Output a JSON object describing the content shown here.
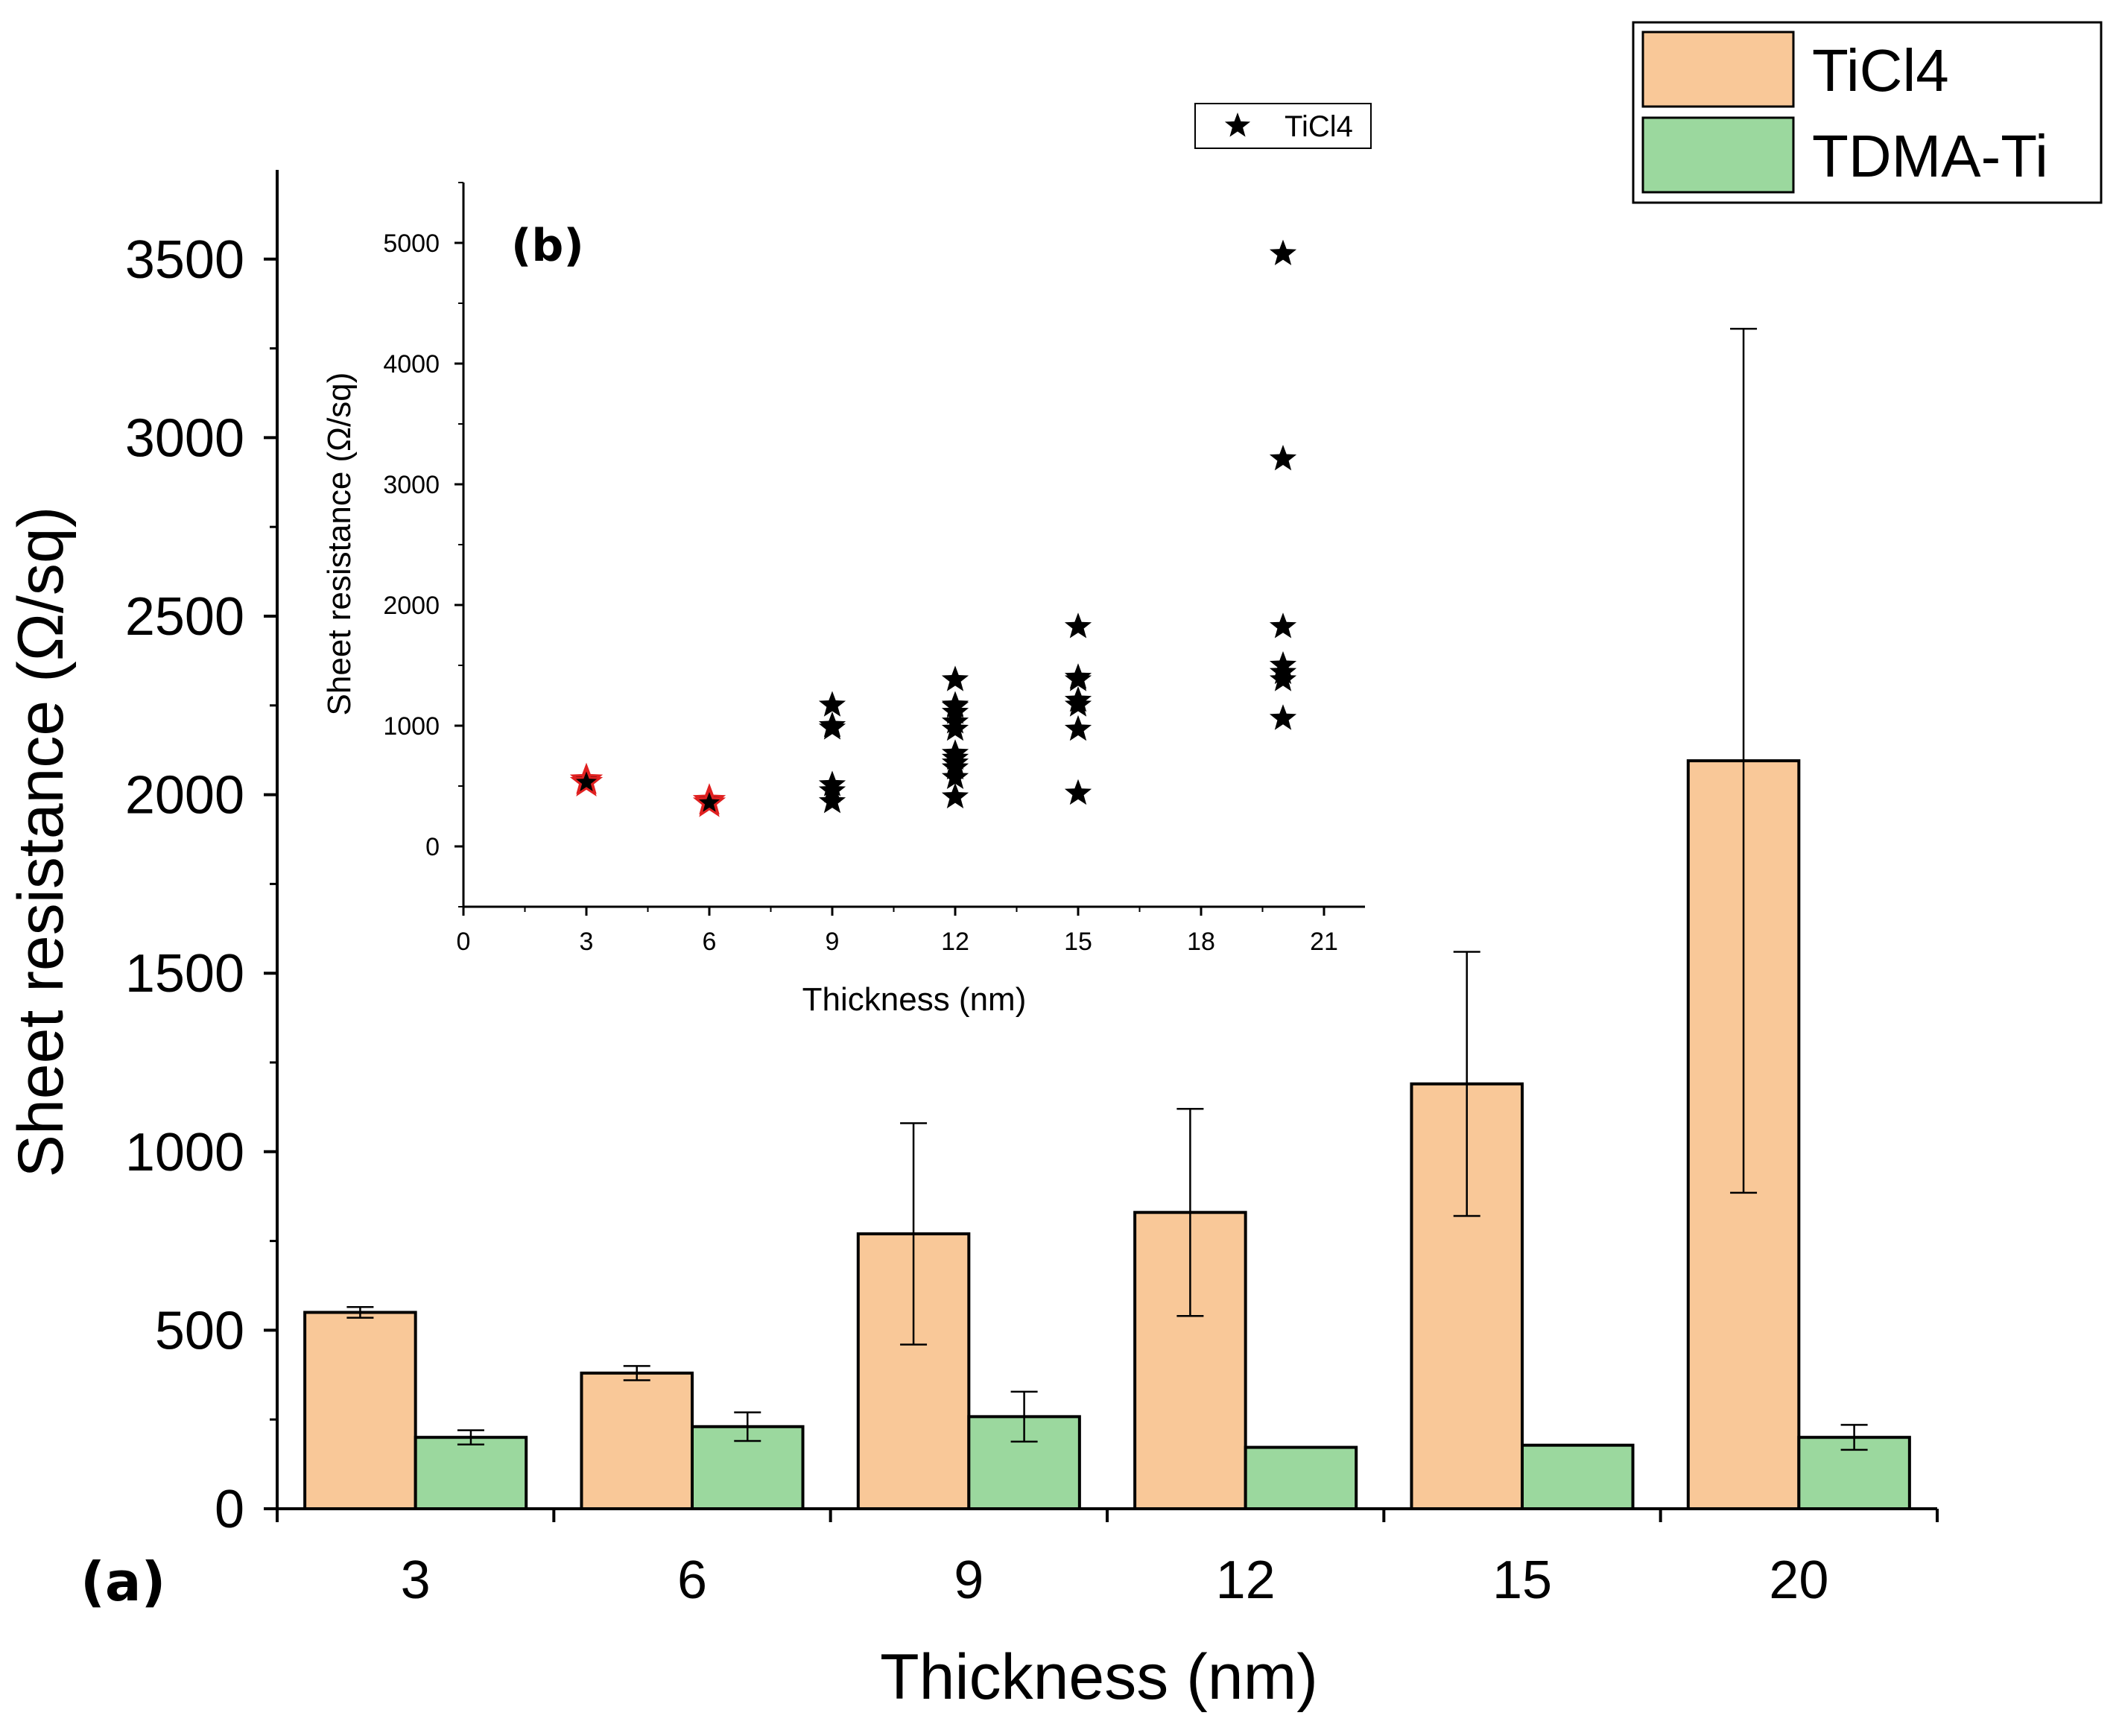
{
  "colors": {
    "ticl4": "#f9c898",
    "tdma": "#9bd89e",
    "axis": "#000000",
    "highlight": "#e02020"
  },
  "chart_data": [
    {
      "id": "a",
      "type": "bar",
      "panel_label": "(a)",
      "xlabel": "Thickness (nm)",
      "ylabel": "Sheet resistance (Ω/sq)",
      "ylim": [
        0,
        3750
      ],
      "yticks": [
        0,
        500,
        1000,
        1500,
        2000,
        2500,
        3000,
        3500
      ],
      "categories": [
        "3",
        "6",
        "9",
        "12",
        "15",
        "20"
      ],
      "legend": {
        "position": "top-right",
        "entries": [
          "TiCl4",
          "TDMA-Ti"
        ]
      },
      "series": [
        {
          "name": "TiCl4",
          "values": [
            550,
            380,
            770,
            830,
            1190,
            2095
          ],
          "error": [
            15,
            20,
            310,
            290,
            370,
            1210
          ]
        },
        {
          "name": "TDMA-Ti",
          "values": [
            200,
            230,
            258,
            172,
            178,
            200
          ],
          "error": [
            20,
            40,
            70,
            0,
            0,
            35
          ]
        }
      ]
    },
    {
      "id": "b",
      "type": "scatter",
      "panel_label": "(b)",
      "xlabel": "Thickness (nm)",
      "ylabel": "Sheet resistance (Ω/sq)",
      "xlim": [
        0,
        22
      ],
      "ylim": [
        -500,
        5500
      ],
      "xticks": [
        0,
        3,
        6,
        9,
        12,
        15,
        18,
        21
      ],
      "yticks": [
        0,
        1000,
        2000,
        3000,
        4000,
        5000
      ],
      "legend": {
        "position": "top-right",
        "entries": [
          "TiCl4"
        ]
      },
      "series": [
        {
          "name": "TiCl4",
          "marker": "star",
          "x": [
            3,
            3,
            6,
            6,
            9,
            9,
            9,
            9,
            9,
            9,
            12,
            12,
            12,
            12,
            12,
            12,
            12,
            12,
            12,
            12,
            12,
            12,
            15,
            15,
            15,
            15,
            15,
            15,
            15,
            20,
            20,
            20,
            20,
            20,
            20,
            20
          ],
          "y": [
            550,
            530,
            380,
            360,
            1170,
            1000,
            980,
            510,
            460,
            370,
            1380,
            1170,
            1110,
            1030,
            970,
            770,
            730,
            690,
            650,
            570,
            410,
            1160,
            1820,
            1400,
            1380,
            1210,
            1170,
            970,
            440,
            4910,
            3210,
            1820,
            1500,
            1440,
            1380,
            1060
          ],
          "highlighted_x": [
            3,
            6
          ]
        }
      ]
    }
  ]
}
